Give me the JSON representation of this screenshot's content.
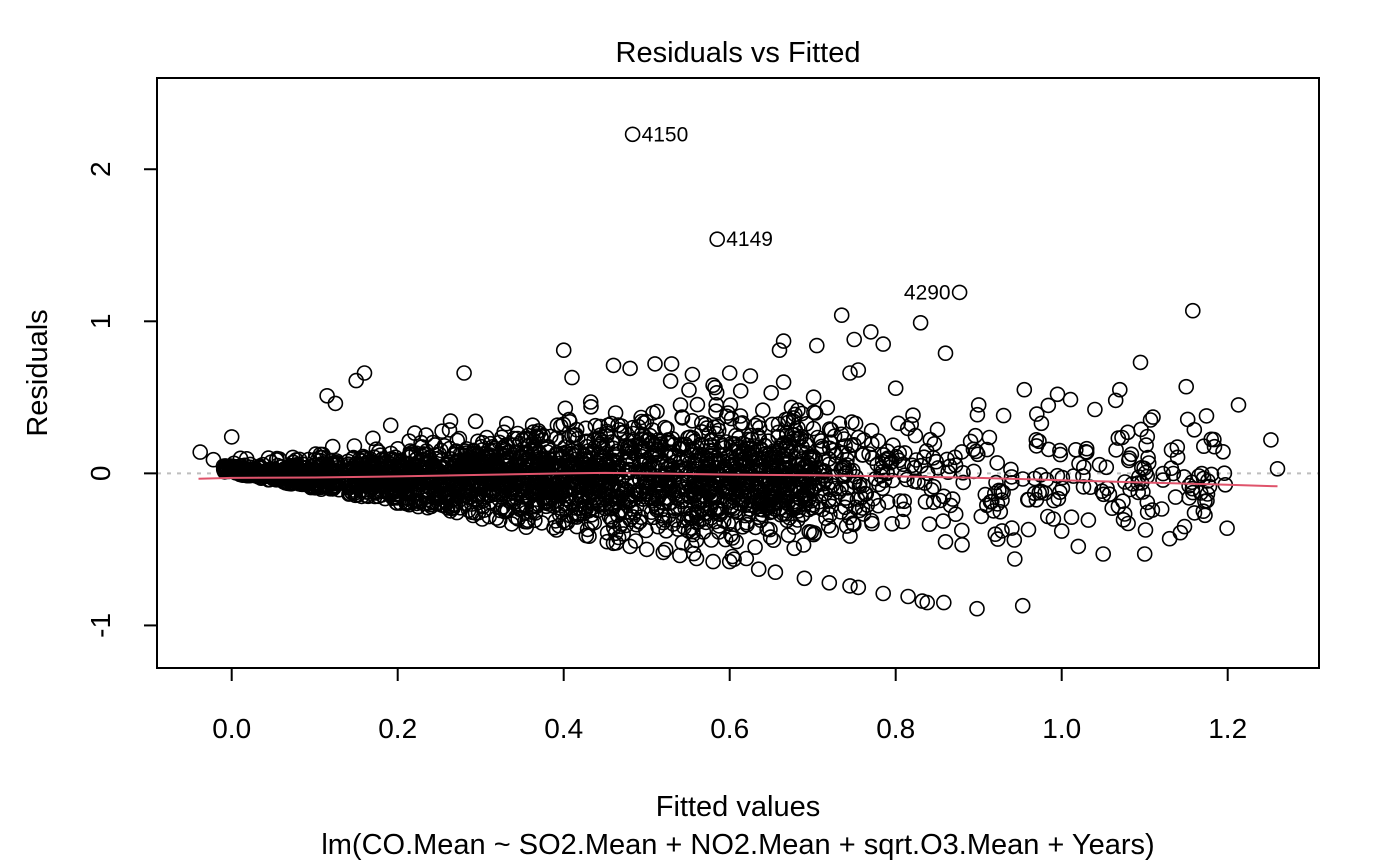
{
  "chart_data": {
    "type": "scatter",
    "title": "Residuals vs Fitted",
    "xlabel": "Fitted values",
    "subtitle": "lm(CO.Mean ~ SO2.Mean + NO2.Mean + sqrt.O3.Mean + Years)",
    "ylabel": "Residuals",
    "xlim": [
      -0.09,
      1.31
    ],
    "ylim": [
      -1.28,
      2.6
    ],
    "xticks": [
      0.0,
      0.2,
      0.4,
      0.6,
      0.8,
      1.0,
      1.2
    ],
    "xtick_labels": [
      "0.0",
      "0.2",
      "0.4",
      "0.6",
      "0.8",
      "1.0",
      "1.2"
    ],
    "yticks": [
      -1,
      0,
      1,
      2
    ],
    "ytick_labels": [
      "-1",
      "0",
      "1",
      "2"
    ],
    "reference_line_y": 0,
    "labeled_points": [
      {
        "label": "4150",
        "x": 0.483,
        "y": 2.23,
        "side": "right"
      },
      {
        "label": "4149",
        "x": 0.585,
        "y": 1.54,
        "side": "right"
      },
      {
        "label": "4290",
        "x": 0.877,
        "y": 1.19,
        "side": "left"
      }
    ],
    "outlier_points": [
      [
        -0.038,
        0.14
      ],
      [
        -0.022,
        0.09
      ],
      [
        0.0,
        0.24
      ],
      [
        0.115,
        0.51
      ],
      [
        0.125,
        0.46
      ],
      [
        0.15,
        0.61
      ],
      [
        0.16,
        0.66
      ],
      [
        0.28,
        0.66
      ],
      [
        0.4,
        0.81
      ],
      [
        0.41,
        0.63
      ],
      [
        0.46,
        0.71
      ],
      [
        0.48,
        0.69
      ],
      [
        0.51,
        0.72
      ],
      [
        0.53,
        0.72
      ],
      [
        0.555,
        0.65
      ],
      [
        0.58,
        0.58
      ],
      [
        0.6,
        0.66
      ],
      [
        0.625,
        0.64
      ],
      [
        0.65,
        0.53
      ],
      [
        0.66,
        0.81
      ],
      [
        0.665,
        0.87
      ],
      [
        0.665,
        0.6
      ],
      [
        0.705,
        0.84
      ],
      [
        0.735,
        1.04
      ],
      [
        0.745,
        0.66
      ],
      [
        0.75,
        0.88
      ],
      [
        0.755,
        0.68
      ],
      [
        0.77,
        0.93
      ],
      [
        0.785,
        0.85
      ],
      [
        0.8,
        0.56
      ],
      [
        0.83,
        0.99
      ],
      [
        0.86,
        0.79
      ],
      [
        0.9,
        0.45
      ],
      [
        0.93,
        0.38
      ],
      [
        0.955,
        0.55
      ],
      [
        0.97,
        0.39
      ],
      [
        0.995,
        0.52
      ],
      [
        1.04,
        0.42
      ],
      [
        1.07,
        0.55
      ],
      [
        1.065,
        0.48
      ],
      [
        1.095,
        0.73
      ],
      [
        1.11,
        0.37
      ],
      [
        1.15,
        0.57
      ],
      [
        1.158,
        1.07
      ],
      [
        1.213,
        0.45
      ],
      [
        1.252,
        0.22
      ],
      [
        1.26,
        0.03
      ],
      [
        1.175,
        -0.18
      ],
      [
        1.16,
        -0.26
      ],
      [
        1.148,
        -0.35
      ],
      [
        1.143,
        -0.39
      ],
      [
        1.13,
        -0.43
      ],
      [
        1.1,
        -0.53
      ],
      [
        1.05,
        -0.53
      ],
      [
        1.0,
        -0.38
      ],
      [
        0.953,
        -0.87
      ],
      [
        0.898,
        -0.89
      ],
      [
        0.858,
        -0.85
      ],
      [
        0.838,
        -0.85
      ],
      [
        0.832,
        -0.84
      ],
      [
        0.815,
        -0.81
      ],
      [
        0.785,
        -0.79
      ],
      [
        0.755,
        -0.75
      ],
      [
        0.745,
        -0.74
      ],
      [
        0.72,
        -0.72
      ],
      [
        0.69,
        -0.69
      ],
      [
        0.655,
        -0.65
      ],
      [
        0.635,
        -0.63
      ],
      [
        0.62,
        -0.56
      ],
      [
        0.6,
        -0.58
      ],
      [
        0.58,
        -0.58
      ],
      [
        0.56,
        -0.56
      ],
      [
        0.54,
        -0.54
      ],
      [
        0.52,
        -0.52
      ],
      [
        0.5,
        -0.5
      ],
      [
        0.48,
        -0.48
      ],
      [
        0.46,
        -0.46
      ],
      [
        0.86,
        -0.45
      ],
      [
        0.88,
        -0.47
      ],
      [
        0.92,
        -0.4
      ],
      [
        0.94,
        -0.36
      ],
      [
        0.96,
        -0.37
      ],
      [
        0.99,
        -0.3
      ],
      [
        1.02,
        -0.48
      ],
      [
        1.08,
        -0.33
      ]
    ],
    "smoother": {
      "x": [
        -0.04,
        0.0,
        0.1,
        0.2,
        0.3,
        0.4,
        0.45,
        0.5,
        0.6,
        0.7,
        0.8,
        0.9,
        1.0,
        1.1,
        1.2,
        1.26
      ],
      "y": [
        -0.035,
        -0.03,
        -0.027,
        -0.02,
        -0.01,
        0.0,
        0.003,
        0.0,
        -0.008,
        -0.013,
        -0.02,
        -0.03,
        -0.045,
        -0.06,
        -0.075,
        -0.085
      ]
    },
    "colors": {
      "points": "#000000",
      "smoother": "#DF536B",
      "reference_line": "#BEBEBE"
    }
  }
}
